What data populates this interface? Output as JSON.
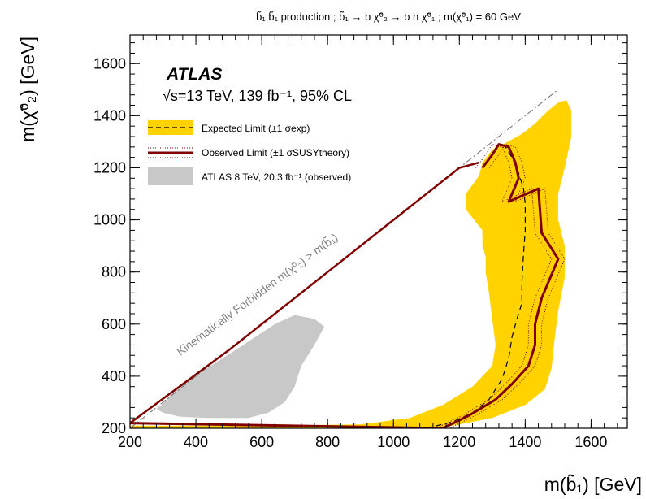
{
  "top_title": "b̃₁ b̃₁ production ; b̃₁ → b χ̃⁰₂ → b h χ̃⁰₁ ;  m(χ̃⁰₁) = 60 GeV",
  "atlas_label": "ATLAS",
  "energy_label": "√s=13 TeV, 139 fb⁻¹, 95% CL",
  "forbidden_label": "Kinematically Forbidden m(χ̃⁰₂) > m(b̃₁)",
  "legend": [
    {
      "key": "expected",
      "label": "Expected Limit (±1 σexp)"
    },
    {
      "key": "observed",
      "label": "Observed Limit (±1 σSUSYtheory)"
    },
    {
      "key": "atlas8",
      "label": "ATLAS 8 TeV, 20.3 fb⁻¹ (observed)"
    }
  ],
  "colors": {
    "expected_band": "#ffd200",
    "observed_line": "#800000",
    "atlas8_region": "#c8c8c8",
    "diagonal": "#707070",
    "forbidden_text": "#808080"
  },
  "chart_data": {
    "type": "contour",
    "xlabel": "m(b̃₁) [GeV]",
    "ylabel": "m(χ̃⁰₂) [GeV]",
    "xlim": [
      200,
      1710
    ],
    "ylim": [
      200,
      1710
    ],
    "xticks": [
      200,
      400,
      600,
      800,
      1000,
      1200,
      1400,
      1600
    ],
    "yticks": [
      200,
      400,
      600,
      800,
      1000,
      1200,
      1400,
      1600
    ],
    "tick_labels_x": [
      "200",
      "400",
      "600",
      "800",
      "1000",
      "1200",
      "1400",
      "1600"
    ],
    "tick_labels_y": [
      "200",
      "400",
      "600",
      "800",
      "1000",
      "1200",
      "1400",
      "1600"
    ],
    "diagonal": [
      [
        200,
        200
      ],
      [
        1500,
        1500
      ]
    ],
    "atlas8_region": [
      [
        295,
        290
      ],
      [
        340,
        350
      ],
      [
        420,
        420
      ],
      [
        520,
        500
      ],
      [
        640,
        600
      ],
      [
        700,
        635
      ],
      [
        760,
        620
      ],
      [
        790,
        590
      ],
      [
        760,
        520
      ],
      [
        720,
        440
      ],
      [
        700,
        360
      ],
      [
        670,
        300
      ],
      [
        620,
        260
      ],
      [
        560,
        240
      ],
      [
        430,
        240
      ],
      [
        350,
        245
      ],
      [
        300,
        260
      ],
      [
        280,
        275
      ]
    ],
    "expected_band": [
      [
        200,
        210
      ],
      [
        600,
        210
      ],
      [
        900,
        215
      ],
      [
        1050,
        240
      ],
      [
        1150,
        290
      ],
      [
        1240,
        360
      ],
      [
        1300,
        440
      ],
      [
        1310,
        520
      ],
      [
        1300,
        620
      ],
      [
        1290,
        720
      ],
      [
        1280,
        800
      ],
      [
        1280,
        860
      ],
      [
        1270,
        900
      ],
      [
        1270,
        960
      ],
      [
        1220,
        1040
      ],
      [
        1220,
        1100
      ],
      [
        1260,
        1170
      ],
      [
        1270,
        1220
      ],
      [
        1300,
        1270
      ],
      [
        1340,
        1295
      ],
      [
        1390,
        1330
      ],
      [
        1430,
        1370
      ],
      [
        1470,
        1420
      ],
      [
        1500,
        1450
      ],
      [
        1525,
        1460
      ],
      [
        1540,
        1420
      ],
      [
        1540,
        1320
      ],
      [
        1520,
        1200
      ],
      [
        1500,
        1100
      ],
      [
        1500,
        1000
      ],
      [
        1520,
        900
      ],
      [
        1520,
        780
      ],
      [
        1500,
        650
      ],
      [
        1490,
        550
      ],
      [
        1480,
        430
      ],
      [
        1460,
        350
      ],
      [
        1400,
        290
      ],
      [
        1300,
        240
      ],
      [
        1200,
        215
      ],
      [
        1130,
        200
      ],
      [
        200,
        200
      ]
    ],
    "expected": [
      [
        1100,
        200
      ],
      [
        1180,
        225
      ],
      [
        1240,
        260
      ],
      [
        1290,
        310
      ],
      [
        1330,
        390
      ],
      [
        1350,
        470
      ],
      [
        1360,
        550
      ],
      [
        1375,
        620
      ],
      [
        1390,
        680
      ],
      [
        1390,
        760
      ],
      [
        1395,
        870
      ],
      [
        1400,
        960
      ],
      [
        1400,
        1060
      ],
      [
        1395,
        1120
      ],
      [
        1380,
        1180
      ],
      [
        1360,
        1240
      ],
      [
        1340,
        1280
      ]
    ],
    "observed": [
      [
        200,
        220
      ],
      [
        1150,
        200
      ],
      [
        1230,
        250
      ],
      [
        1310,
        310
      ],
      [
        1360,
        370
      ],
      [
        1410,
        440
      ],
      [
        1430,
        520
      ],
      [
        1430,
        600
      ],
      [
        1450,
        700
      ],
      [
        1500,
        850
      ],
      [
        1450,
        950
      ],
      [
        1440,
        1120
      ],
      [
        1350,
        1070
      ],
      [
        1380,
        1160
      ],
      [
        1370,
        1220
      ],
      [
        1350,
        1280
      ],
      [
        1320,
        1290
      ],
      [
        1300,
        1250
      ],
      [
        1270,
        1200
      ]
    ],
    "observed_diagonal": [
      [
        200,
        220
      ],
      [
        500,
        500
      ],
      [
        800,
        800
      ],
      [
        1000,
        1000
      ],
      [
        1200,
        1200
      ],
      [
        1260,
        1220
      ]
    ]
  }
}
